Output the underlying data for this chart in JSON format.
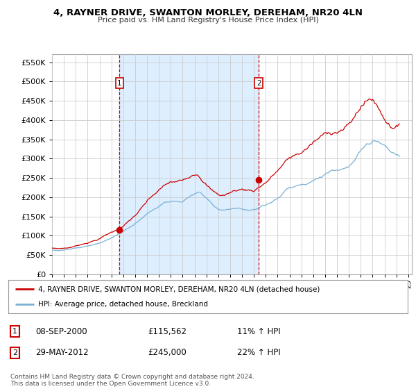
{
  "title": "4, RAYNER DRIVE, SWANTON MORLEY, DEREHAM, NR20 4LN",
  "subtitle": "Price paid vs. HM Land Registry's House Price Index (HPI)",
  "ylabel_ticks": [
    "£0",
    "£50K",
    "£100K",
    "£150K",
    "£200K",
    "£250K",
    "£300K",
    "£350K",
    "£400K",
    "£450K",
    "£500K",
    "£550K"
  ],
  "ylim": [
    0,
    570000
  ],
  "yticks": [
    0,
    50000,
    100000,
    150000,
    200000,
    250000,
    300000,
    350000,
    400000,
    450000,
    500000,
    550000
  ],
  "xlim_start": 1995.0,
  "xlim_end": 2025.3,
  "line_color_red": "#cc0000",
  "line_color_blue": "#7ab0d4",
  "bg_color": "#ffffff",
  "grid_color": "#cccccc",
  "shade_color": "#ddeeff",
  "sale1_x": 2000.69,
  "sale1_y": 115562,
  "sale2_x": 2012.41,
  "sale2_y": 245000,
  "legend_line1": "4, RAYNER DRIVE, SWANTON MORLEY, DEREHAM, NR20 4LN (detached house)",
  "legend_line2": "HPI: Average price, detached house, Breckland",
  "ann1_num": "1",
  "ann1_date": "08-SEP-2000",
  "ann1_price": "£115,562",
  "ann1_hpi": "11% ↑ HPI",
  "ann2_num": "2",
  "ann2_date": "29-MAY-2012",
  "ann2_price": "£245,000",
  "ann2_hpi": "22% ↑ HPI",
  "footer": "Contains HM Land Registry data © Crown copyright and database right 2024.\nThis data is licensed under the Open Government Licence v3.0."
}
